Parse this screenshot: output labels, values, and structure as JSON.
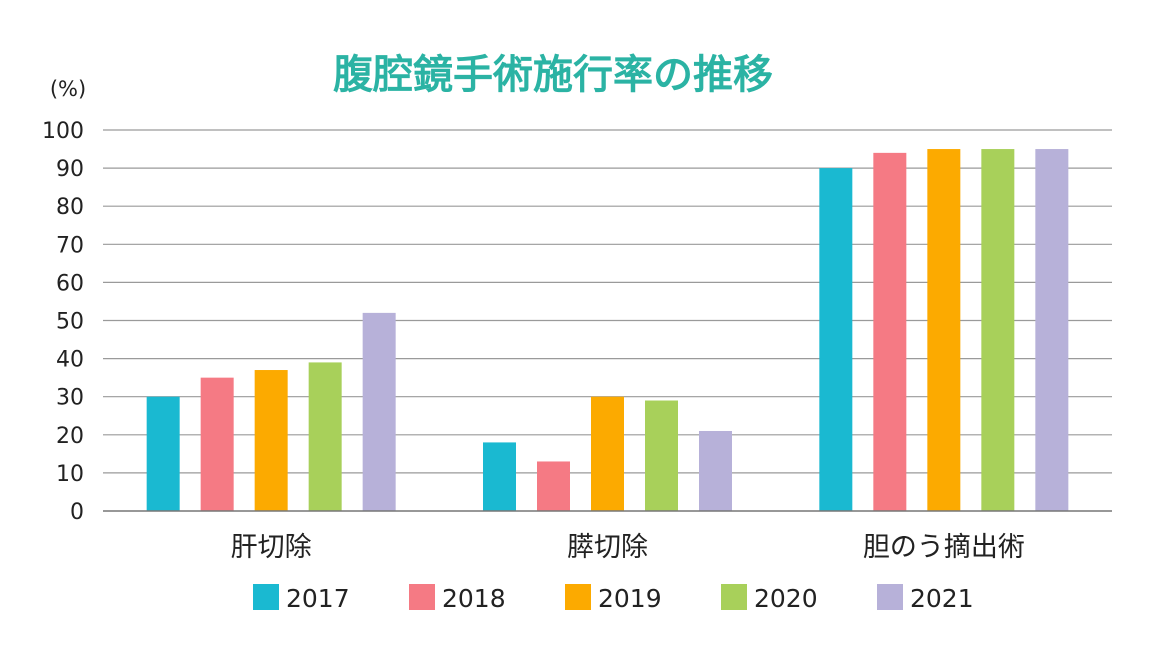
{
  "chart_data": {
    "type": "bar",
    "title": "腹腔鏡手術施行率の推移",
    "y_unit": "(%)",
    "ylim": [
      0,
      100
    ],
    "yticks": [
      0,
      10,
      20,
      30,
      40,
      50,
      60,
      70,
      80,
      90,
      100
    ],
    "grid": true,
    "legend_position": "bottom",
    "categories": [
      "肝切除",
      "膵切除",
      "胆のう摘出術"
    ],
    "series": [
      {
        "name": "2017",
        "color": "#1ab9d1",
        "values": [
          30,
          18,
          90
        ]
      },
      {
        "name": "2018",
        "color": "#f57a84",
        "values": [
          35,
          13,
          94
        ]
      },
      {
        "name": "2019",
        "color": "#fcaa00",
        "values": [
          37,
          30,
          95
        ]
      },
      {
        "name": "2020",
        "color": "#a8d05a",
        "values": [
          39,
          29,
          95
        ]
      },
      {
        "name": "2021",
        "color": "#b7b1d9",
        "values": [
          52,
          21,
          95
        ]
      }
    ]
  }
}
